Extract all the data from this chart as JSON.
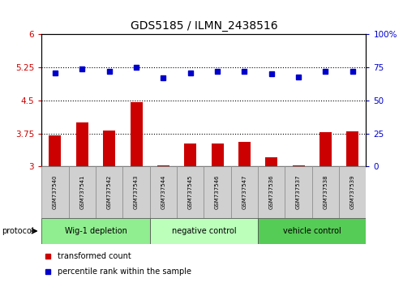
{
  "title": "GDS5185 / ILMN_2438516",
  "samples": [
    "GSM737540",
    "GSM737541",
    "GSM737542",
    "GSM737543",
    "GSM737544",
    "GSM737545",
    "GSM737546",
    "GSM737547",
    "GSM737536",
    "GSM737537",
    "GSM737538",
    "GSM737539"
  ],
  "bar_values": [
    3.7,
    4.0,
    3.82,
    4.47,
    3.03,
    3.52,
    3.52,
    3.55,
    3.2,
    3.02,
    3.78,
    3.8
  ],
  "dot_values": [
    71,
    74,
    72,
    75,
    67,
    71,
    72,
    72,
    70,
    68,
    72,
    72
  ],
  "bar_base": 3.0,
  "ylim_left": [
    3.0,
    6.0
  ],
  "ylim_right": [
    0,
    100
  ],
  "yticks_left": [
    3.0,
    3.75,
    4.5,
    5.25,
    6.0
  ],
  "ytick_labels_left": [
    "3",
    "3.75",
    "4.5",
    "5.25",
    "6"
  ],
  "yticks_right": [
    0,
    25,
    50,
    75,
    100
  ],
  "ytick_labels_right": [
    "0",
    "25",
    "50",
    "75",
    "100%"
  ],
  "hlines": [
    3.75,
    4.5,
    5.25
  ],
  "bar_color": "#cc0000",
  "dot_color": "#0000cc",
  "groups": [
    {
      "label": "Wig-1 depletion",
      "start": 0,
      "end": 4,
      "color": "#90ee90"
    },
    {
      "label": "negative control",
      "start": 4,
      "end": 8,
      "color": "#bbffbb"
    },
    {
      "label": "vehicle control",
      "start": 8,
      "end": 12,
      "color": "#55cc55"
    }
  ],
  "protocol_label": "protocol",
  "legend_bar_label": "transformed count",
  "legend_dot_label": "percentile rank within the sample",
  "tick_color_left": "#cc0000",
  "tick_color_right": "#0000cc",
  "plot_bg_color": "#ffffff",
  "sample_box_color": "#d0d0d0",
  "bar_width": 0.45
}
